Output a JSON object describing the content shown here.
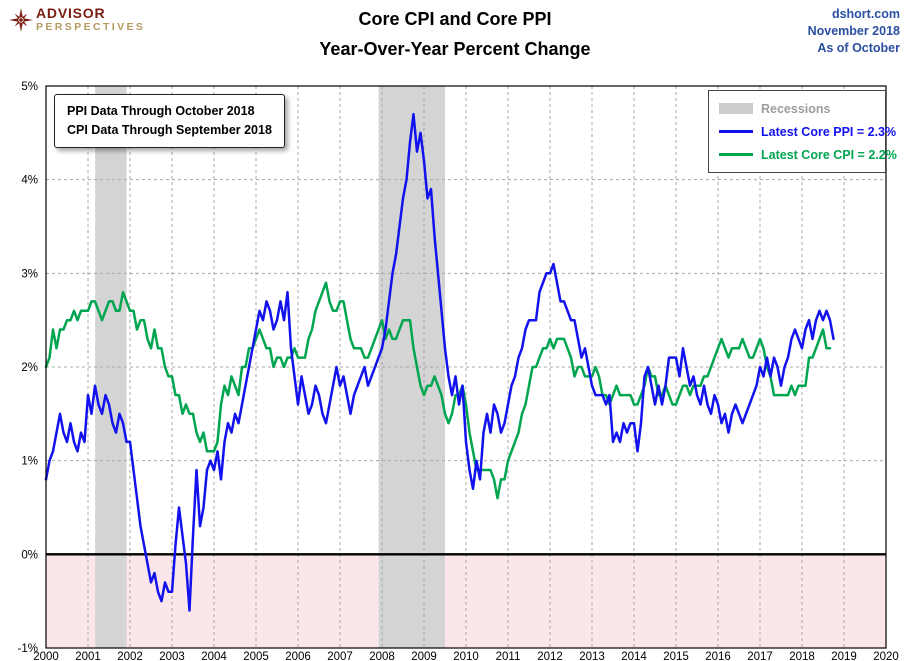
{
  "header": {
    "logo": {
      "advisor": "ADVISOR",
      "perspectives": "PERSPECTIVES",
      "advisor_color": "#7b1d12",
      "perspectives_color": "#b49a5e"
    },
    "title_line1": "Core CPI and Core PPI",
    "title_line2": "Year-Over-Year Percent Change",
    "right": {
      "source": "dshort.com",
      "month": "November 2018",
      "asof": "As of October",
      "color": "#2b4fa2"
    }
  },
  "annotation": {
    "line1": "PPI Data Through October 2018",
    "line2": "CPI Data Through September 2018"
  },
  "legend": {
    "recessions_label": "Recessions",
    "recessions_color": "#9d9d9d",
    "ppi_label": "Latest Core PPI = 2.3%",
    "cpi_label": "Latest Core CPI = 2.2%"
  },
  "chart_data": {
    "type": "line",
    "title": "Core CPI and Core PPI Year-Over-Year Percent Change",
    "xlabel": "",
    "ylabel": "Percent",
    "xlim": [
      2000,
      2020
    ],
    "ylim": [
      -1,
      5
    ],
    "grid": true,
    "grid_color": "#a8a8a8",
    "negative_fill": "#fbe7e9",
    "recession_color": "#d4d4d4",
    "recession_swatch": "#cccccc",
    "recessions": [
      [
        2001.17,
        2001.92
      ],
      [
        2007.92,
        2009.5
      ]
    ],
    "x_ticks": [
      {
        "v": 2000,
        "label": "2000"
      },
      {
        "v": 2001,
        "label": "2001"
      },
      {
        "v": 2002,
        "label": "2002"
      },
      {
        "v": 2003,
        "label": "2003"
      },
      {
        "v": 2004,
        "label": "2004"
      },
      {
        "v": 2005,
        "label": "2005"
      },
      {
        "v": 2006,
        "label": "2006"
      },
      {
        "v": 2007,
        "label": "2007"
      },
      {
        "v": 2008,
        "label": "2008"
      },
      {
        "v": 2009,
        "label": "2009"
      },
      {
        "v": 2010,
        "label": "2010"
      },
      {
        "v": 2011,
        "label": "2011"
      },
      {
        "v": 2012,
        "label": "2012"
      },
      {
        "v": 2013,
        "label": "2013"
      },
      {
        "v": 2014,
        "label": "2014"
      },
      {
        "v": 2015,
        "label": "2015"
      },
      {
        "v": 2016,
        "label": "2016"
      },
      {
        "v": 2017,
        "label": "2017"
      },
      {
        "v": 2018,
        "label": "2018"
      },
      {
        "v": 2019,
        "label": "2019"
      },
      {
        "v": 2020,
        "label": "2020"
      }
    ],
    "y_ticks": [
      {
        "v": -1,
        "label": "-1%"
      },
      {
        "v": 0,
        "label": "0%"
      },
      {
        "v": 1,
        "label": "1%"
      },
      {
        "v": 2,
        "label": "2%"
      },
      {
        "v": 3,
        "label": "3%"
      },
      {
        "v": 4,
        "label": "4%"
      },
      {
        "v": 5,
        "label": "5%"
      }
    ],
    "series": [
      {
        "name": "Core PPI",
        "latest": 2.3,
        "color": "#1212ee",
        "start": 2000.0,
        "step_months": 1,
        "values": [
          0.8,
          1.0,
          1.1,
          1.3,
          1.5,
          1.3,
          1.2,
          1.4,
          1.2,
          1.1,
          1.3,
          1.2,
          1.7,
          1.5,
          1.8,
          1.6,
          1.5,
          1.7,
          1.6,
          1.4,
          1.3,
          1.5,
          1.4,
          1.2,
          1.2,
          0.9,
          0.6,
          0.3,
          0.1,
          -0.1,
          -0.3,
          -0.2,
          -0.4,
          -0.5,
          -0.3,
          -0.4,
          -0.4,
          0.1,
          0.5,
          0.2,
          -0.1,
          -0.6,
          0.2,
          0.9,
          0.3,
          0.5,
          0.9,
          1.0,
          0.9,
          1.1,
          0.8,
          1.2,
          1.4,
          1.3,
          1.5,
          1.4,
          1.6,
          1.8,
          2.0,
          2.2,
          2.4,
          2.6,
          2.5,
          2.7,
          2.6,
          2.4,
          2.5,
          2.7,
          2.5,
          2.8,
          2.2,
          1.9,
          1.6,
          1.9,
          1.7,
          1.5,
          1.6,
          1.8,
          1.7,
          1.5,
          1.4,
          1.6,
          1.8,
          2.0,
          1.8,
          1.9,
          1.7,
          1.5,
          1.7,
          1.8,
          1.9,
          2.0,
          1.8,
          1.9,
          2.0,
          2.1,
          2.2,
          2.4,
          2.7,
          3.0,
          3.2,
          3.5,
          3.8,
          4.0,
          4.4,
          4.7,
          4.3,
          4.5,
          4.2,
          3.8,
          3.9,
          3.4,
          3.0,
          2.6,
          2.2,
          1.9,
          1.7,
          1.9,
          1.6,
          1.8,
          1.2,
          0.9,
          0.7,
          1.0,
          0.8,
          1.3,
          1.5,
          1.3,
          1.6,
          1.5,
          1.3,
          1.4,
          1.6,
          1.8,
          1.9,
          2.1,
          2.2,
          2.4,
          2.5,
          2.5,
          2.5,
          2.8,
          2.9,
          3.0,
          3.0,
          3.1,
          2.9,
          2.7,
          2.7,
          2.6,
          2.5,
          2.5,
          2.3,
          2.1,
          2.2,
          2.0,
          1.8,
          1.7,
          1.7,
          1.7,
          1.6,
          1.7,
          1.2,
          1.3,
          1.2,
          1.4,
          1.3,
          1.4,
          1.4,
          1.1,
          1.4,
          1.9,
          2.0,
          1.8,
          1.6,
          1.8,
          1.6,
          1.8,
          2.1,
          2.1,
          2.1,
          1.9,
          2.2,
          2.0,
          1.8,
          1.9,
          1.7,
          1.6,
          1.8,
          1.6,
          1.5,
          1.7,
          1.6,
          1.4,
          1.5,
          1.3,
          1.5,
          1.6,
          1.5,
          1.4,
          1.5,
          1.6,
          1.7,
          1.8,
          2.0,
          1.9,
          2.1,
          1.9,
          2.1,
          2.0,
          1.8,
          2.0,
          2.1,
          2.3,
          2.4,
          2.3,
          2.2,
          2.4,
          2.5,
          2.3,
          2.5,
          2.6,
          2.5,
          2.6,
          2.5,
          2.3
        ]
      },
      {
        "name": "Core CPI",
        "latest": 2.2,
        "color": "#00a550",
        "start": 2000.0,
        "step_months": 1,
        "values": [
          2.0,
          2.1,
          2.4,
          2.2,
          2.4,
          2.4,
          2.5,
          2.5,
          2.6,
          2.5,
          2.6,
          2.6,
          2.6,
          2.7,
          2.7,
          2.6,
          2.5,
          2.6,
          2.7,
          2.7,
          2.6,
          2.6,
          2.8,
          2.7,
          2.6,
          2.6,
          2.4,
          2.5,
          2.5,
          2.3,
          2.2,
          2.4,
          2.2,
          2.2,
          2.0,
          1.9,
          1.9,
          1.7,
          1.7,
          1.5,
          1.6,
          1.5,
          1.5,
          1.3,
          1.2,
          1.3,
          1.1,
          1.1,
          1.1,
          1.2,
          1.6,
          1.8,
          1.7,
          1.9,
          1.8,
          1.7,
          2.0,
          2.0,
          2.2,
          2.2,
          2.3,
          2.4,
          2.3,
          2.2,
          2.2,
          2.0,
          2.1,
          2.1,
          2.0,
          2.1,
          2.1,
          2.2,
          2.1,
          2.1,
          2.1,
          2.3,
          2.4,
          2.6,
          2.7,
          2.8,
          2.9,
          2.7,
          2.6,
          2.6,
          2.7,
          2.7,
          2.5,
          2.3,
          2.2,
          2.2,
          2.2,
          2.1,
          2.1,
          2.2,
          2.3,
          2.4,
          2.5,
          2.3,
          2.4,
          2.3,
          2.3,
          2.4,
          2.5,
          2.5,
          2.5,
          2.2,
          2.0,
          1.8,
          1.7,
          1.8,
          1.8,
          1.9,
          1.8,
          1.7,
          1.5,
          1.4,
          1.5,
          1.7,
          1.7,
          1.8,
          1.6,
          1.3,
          1.1,
          0.9,
          0.9,
          0.9,
          0.9,
          0.9,
          0.8,
          0.6,
          0.8,
          0.8,
          1.0,
          1.1,
          1.2,
          1.3,
          1.5,
          1.6,
          1.8,
          2.0,
          2.0,
          2.1,
          2.2,
          2.2,
          2.3,
          2.2,
          2.3,
          2.3,
          2.3,
          2.2,
          2.1,
          1.9,
          2.0,
          2.0,
          1.9,
          1.9,
          1.9,
          2.0,
          1.9,
          1.7,
          1.7,
          1.6,
          1.7,
          1.8,
          1.7,
          1.7,
          1.7,
          1.7,
          1.6,
          1.6,
          1.7,
          1.8,
          2.0,
          1.9,
          1.9,
          1.7,
          1.7,
          1.8,
          1.7,
          1.6,
          1.6,
          1.7,
          1.8,
          1.8,
          1.7,
          1.8,
          1.8,
          1.8,
          1.9,
          1.9,
          2.0,
          2.1,
          2.2,
          2.3,
          2.2,
          2.1,
          2.2,
          2.2,
          2.2,
          2.3,
          2.2,
          2.1,
          2.1,
          2.2,
          2.3,
          2.2,
          2.0,
          1.9,
          1.7,
          1.7,
          1.7,
          1.7,
          1.7,
          1.8,
          1.7,
          1.8,
          1.8,
          1.8,
          2.1,
          2.1,
          2.2,
          2.3,
          2.4,
          2.2,
          2.2
        ]
      }
    ]
  }
}
